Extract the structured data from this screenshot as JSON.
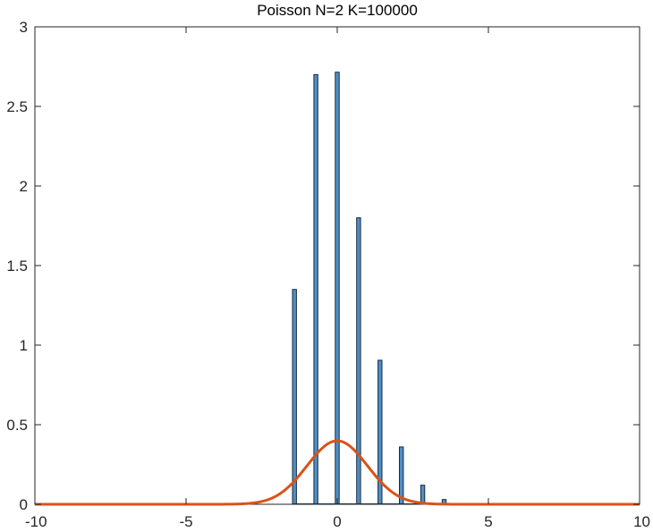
{
  "chart_data": {
    "type": "bar",
    "title": "Poisson N=2 K=100000",
    "xlabel": "",
    "ylabel": "",
    "xlim": [
      -10,
      10
    ],
    "ylim": [
      0,
      3
    ],
    "xticks": [
      -10,
      -5,
      0,
      5,
      10
    ],
    "xtick_labels": [
      "-10",
      "-5",
      "0",
      "5",
      "10"
    ],
    "yticks": [
      0,
      0.5,
      1,
      1.5,
      2,
      2.5,
      3
    ],
    "ytick_labels": [
      "0",
      "0.5",
      "1",
      "1.5",
      "2",
      "2.5",
      "3"
    ],
    "grid": false,
    "legend": "none",
    "colors": {
      "bar_fill": "#4f8fc9",
      "bar_edge": "#1a2a3a",
      "curve": "#d95319",
      "axis": "#262626"
    },
    "histogram": {
      "name": "",
      "bin_centers": [
        -1.414,
        -0.707,
        0.0,
        0.707,
        1.414,
        2.121,
        2.828,
        3.536
      ],
      "bin_width": 0.13,
      "values": [
        1.35,
        2.7,
        2.715,
        1.8,
        0.905,
        0.36,
        0.12,
        0.03
      ]
    },
    "curve": {
      "name": "",
      "kind": "standard normal pdf",
      "mean": 0,
      "std": 1,
      "peak": 0.3989
    }
  }
}
